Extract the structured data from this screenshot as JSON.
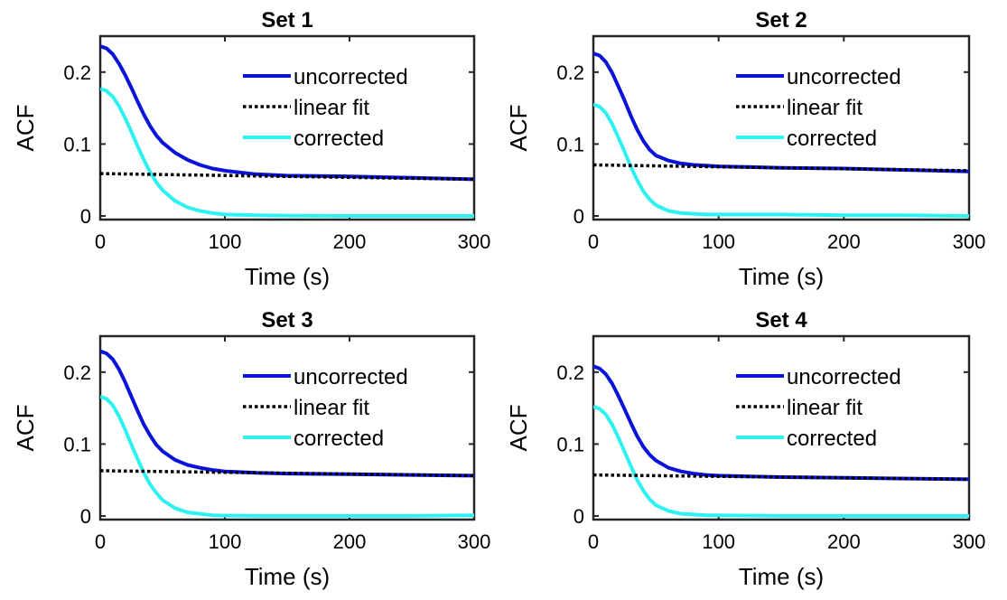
{
  "chart_data": [
    {
      "type": "line",
      "title": "Set 1",
      "xlabel": "Time (s)",
      "ylabel": "ACF",
      "xlim": [
        0,
        300
      ],
      "ylim": [
        -0.005,
        0.25
      ],
      "xticks": [
        0,
        100,
        200,
        300
      ],
      "yticks": [
        0,
        0.1,
        0.2
      ],
      "xtick_labels": [
        "0",
        "100",
        "200",
        "300"
      ],
      "ytick_labels": [
        "0",
        "0.1",
        "0.2"
      ],
      "grid": false,
      "legend_position": "top-right",
      "series": [
        {
          "name": "uncorrected",
          "color": "#0a14d8",
          "style": "solid",
          "x": [
            0,
            5,
            10,
            15,
            20,
            25,
            30,
            35,
            40,
            45,
            50,
            60,
            70,
            80,
            90,
            100,
            125,
            150,
            200,
            250,
            300
          ],
          "y": [
            0.236,
            0.233,
            0.225,
            0.212,
            0.196,
            0.178,
            0.159,
            0.141,
            0.125,
            0.112,
            0.102,
            0.088,
            0.078,
            0.071,
            0.066,
            0.063,
            0.058,
            0.056,
            0.055,
            0.053,
            0.051
          ]
        },
        {
          "name": "linear fit",
          "color": "#000000",
          "style": "dotted",
          "x": [
            0,
            300
          ],
          "y": [
            0.059,
            0.051
          ]
        },
        {
          "name": "corrected",
          "color": "#2ef2f2",
          "style": "solid",
          "x": [
            0,
            5,
            10,
            15,
            20,
            25,
            30,
            35,
            40,
            45,
            50,
            60,
            70,
            80,
            90,
            100,
            125,
            150,
            200,
            250,
            300
          ],
          "y": [
            0.177,
            0.174,
            0.166,
            0.153,
            0.136,
            0.117,
            0.097,
            0.078,
            0.061,
            0.047,
            0.036,
            0.021,
            0.012,
            0.007,
            0.004,
            0.002,
            0.001,
            0.0005,
            0.0,
            0.0,
            0.0
          ]
        }
      ]
    },
    {
      "type": "line",
      "title": "Set 2",
      "xlabel": "Time (s)",
      "ylabel": "ACF",
      "xlim": [
        0,
        300
      ],
      "ylim": [
        -0.005,
        0.25
      ],
      "xticks": [
        0,
        100,
        200,
        300
      ],
      "yticks": [
        0,
        0.1,
        0.2
      ],
      "xtick_labels": [
        "0",
        "100",
        "200",
        "300"
      ],
      "ytick_labels": [
        "0",
        "0.1",
        "0.2"
      ],
      "grid": false,
      "legend_position": "top-right",
      "series": [
        {
          "name": "uncorrected",
          "color": "#0a14d8",
          "style": "solid",
          "x": [
            0,
            5,
            10,
            15,
            20,
            25,
            30,
            35,
            40,
            45,
            50,
            60,
            70,
            80,
            90,
            100,
            125,
            150,
            200,
            250,
            300
          ],
          "y": [
            0.226,
            0.223,
            0.214,
            0.199,
            0.18,
            0.16,
            0.139,
            0.12,
            0.104,
            0.092,
            0.084,
            0.077,
            0.073,
            0.071,
            0.07,
            0.069,
            0.068,
            0.067,
            0.066,
            0.064,
            0.062
          ]
        },
        {
          "name": "linear fit",
          "color": "#000000",
          "style": "dotted",
          "x": [
            0,
            300
          ],
          "y": [
            0.071,
            0.063
          ]
        },
        {
          "name": "corrected",
          "color": "#2ef2f2",
          "style": "solid",
          "x": [
            0,
            5,
            10,
            15,
            20,
            25,
            30,
            35,
            40,
            45,
            50,
            60,
            70,
            80,
            90,
            100,
            125,
            150,
            200,
            250,
            300
          ],
          "y": [
            0.155,
            0.152,
            0.143,
            0.128,
            0.109,
            0.089,
            0.068,
            0.05,
            0.034,
            0.023,
            0.015,
            0.007,
            0.004,
            0.003,
            0.002,
            0.002,
            0.002,
            0.002,
            0.001,
            0.001,
            0.0
          ]
        }
      ]
    },
    {
      "type": "line",
      "title": "Set 3",
      "xlabel": "Time (s)",
      "ylabel": "ACF",
      "xlim": [
        0,
        300
      ],
      "ylim": [
        -0.005,
        0.25
      ],
      "xticks": [
        0,
        100,
        200,
        300
      ],
      "yticks": [
        0,
        0.1,
        0.2
      ],
      "xtick_labels": [
        "0",
        "100",
        "200",
        "300"
      ],
      "ytick_labels": [
        "0",
        "0.1",
        "0.2"
      ],
      "grid": false,
      "legend_position": "top-right",
      "series": [
        {
          "name": "uncorrected",
          "color": "#0a14d8",
          "style": "solid",
          "x": [
            0,
            5,
            10,
            15,
            20,
            25,
            30,
            35,
            40,
            45,
            50,
            60,
            70,
            80,
            90,
            100,
            125,
            150,
            200,
            250,
            300
          ],
          "y": [
            0.229,
            0.226,
            0.218,
            0.204,
            0.186,
            0.166,
            0.146,
            0.127,
            0.112,
            0.099,
            0.09,
            0.078,
            0.071,
            0.067,
            0.064,
            0.062,
            0.06,
            0.059,
            0.058,
            0.057,
            0.056
          ]
        },
        {
          "name": "linear fit",
          "color": "#000000",
          "style": "dotted",
          "x": [
            0,
            300
          ],
          "y": [
            0.063,
            0.056
          ]
        },
        {
          "name": "corrected",
          "color": "#2ef2f2",
          "style": "solid",
          "x": [
            0,
            5,
            10,
            15,
            20,
            25,
            30,
            35,
            40,
            45,
            50,
            60,
            70,
            80,
            90,
            100,
            125,
            150,
            200,
            250,
            300
          ],
          "y": [
            0.166,
            0.163,
            0.154,
            0.139,
            0.12,
            0.099,
            0.079,
            0.06,
            0.044,
            0.032,
            0.022,
            0.011,
            0.005,
            0.003,
            0.001,
            0.0005,
            0.0,
            0.0,
            0.0,
            0.0,
            0.001
          ]
        }
      ]
    },
    {
      "type": "line",
      "title": "Set 4",
      "xlabel": "Time (s)",
      "ylabel": "ACF",
      "xlim": [
        0,
        300
      ],
      "ylim": [
        -0.005,
        0.25
      ],
      "xticks": [
        0,
        100,
        200,
        300
      ],
      "yticks": [
        0,
        0.1,
        0.2
      ],
      "xtick_labels": [
        "0",
        "100",
        "200",
        "300"
      ],
      "ytick_labels": [
        "0",
        "0.1",
        "0.2"
      ],
      "grid": false,
      "legend_position": "top-right",
      "series": [
        {
          "name": "uncorrected",
          "color": "#0a14d8",
          "style": "solid",
          "x": [
            0,
            5,
            10,
            15,
            20,
            25,
            30,
            35,
            40,
            45,
            50,
            60,
            70,
            80,
            90,
            100,
            125,
            150,
            200,
            250,
            300
          ],
          "y": [
            0.208,
            0.205,
            0.197,
            0.184,
            0.167,
            0.148,
            0.129,
            0.111,
            0.096,
            0.085,
            0.077,
            0.067,
            0.062,
            0.059,
            0.057,
            0.056,
            0.055,
            0.054,
            0.053,
            0.052,
            0.051
          ]
        },
        {
          "name": "linear fit",
          "color": "#000000",
          "style": "dotted",
          "x": [
            0,
            300
          ],
          "y": [
            0.057,
            0.051
          ]
        },
        {
          "name": "corrected",
          "color": "#2ef2f2",
          "style": "solid",
          "x": [
            0,
            5,
            10,
            15,
            20,
            25,
            30,
            35,
            40,
            45,
            50,
            60,
            70,
            80,
            90,
            100,
            125,
            150,
            200,
            250,
            300
          ],
          "y": [
            0.152,
            0.149,
            0.141,
            0.127,
            0.109,
            0.089,
            0.069,
            0.05,
            0.035,
            0.023,
            0.015,
            0.007,
            0.003,
            0.002,
            0.001,
            0.001,
            0.0005,
            0.0,
            0.0,
            0.0,
            0.0
          ]
        }
      ]
    }
  ]
}
